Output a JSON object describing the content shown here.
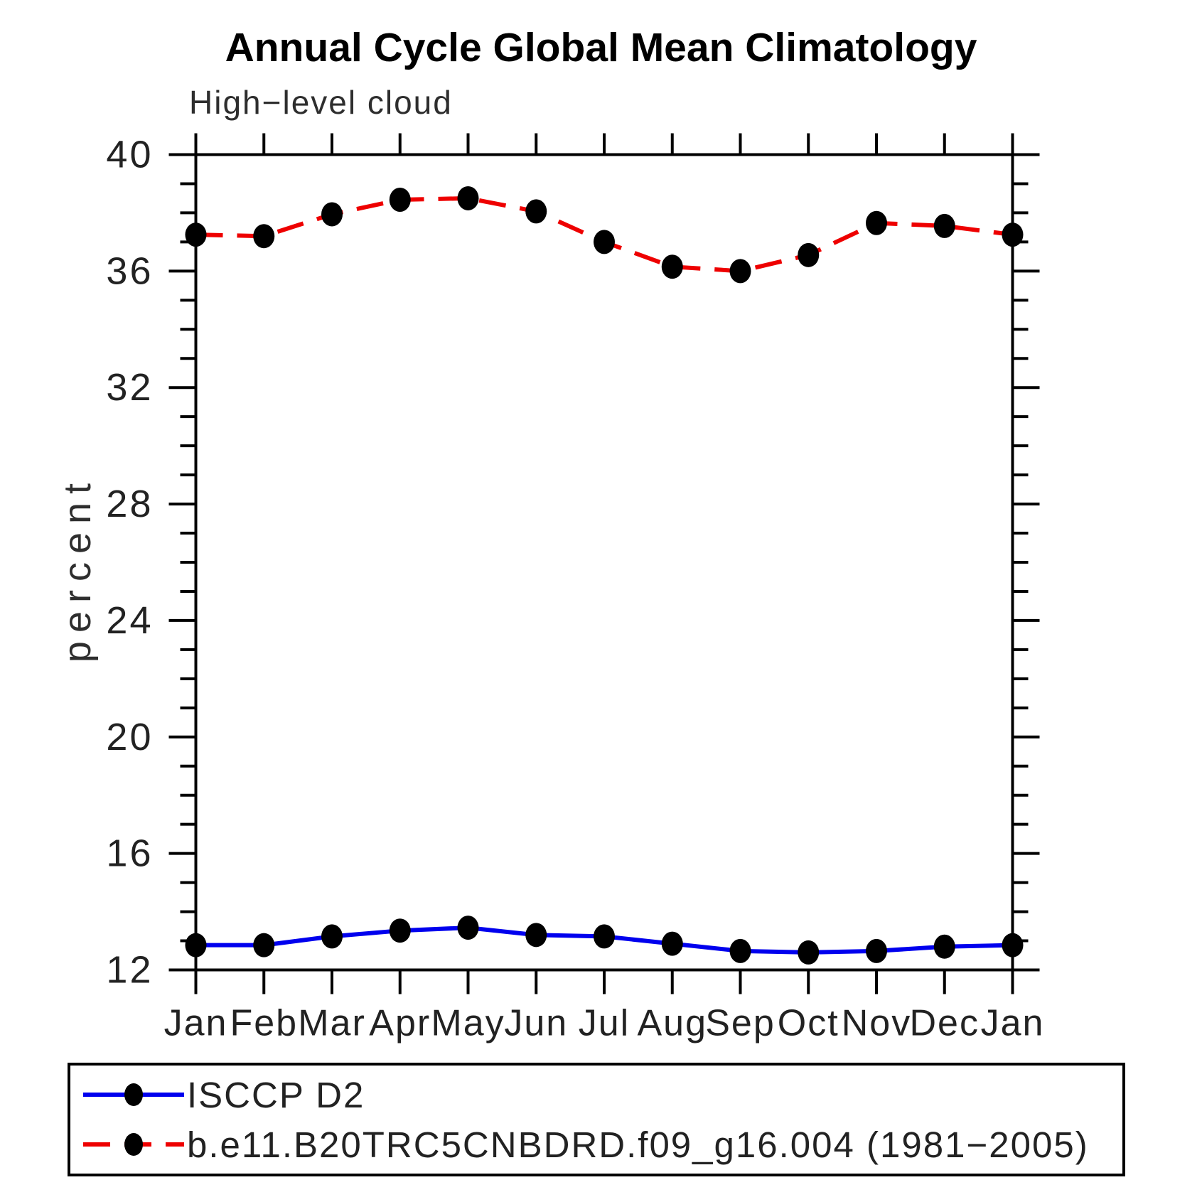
{
  "chart_data": {
    "type": "line",
    "title": "Annual Cycle Global Mean Climatology",
    "subtitle": "High−level cloud",
    "ylabel": "percent",
    "xlabel": "",
    "categories": [
      "Jan",
      "Feb",
      "Mar",
      "Apr",
      "May",
      "Jun",
      "Jul",
      "Aug",
      "Sep",
      "Oct",
      "Nov",
      "Dec",
      "Jan"
    ],
    "ylim": [
      12,
      40
    ],
    "yticks_major": [
      12,
      16,
      20,
      24,
      28,
      32,
      36,
      40
    ],
    "ytick_minor_step": 1,
    "grid": false,
    "legend_position": "bottom",
    "series": [
      {
        "name": "ISCCP D2",
        "color": "#0000ee",
        "style": "solid",
        "dash": null,
        "marker": "filled-circle",
        "marker_color": "#000000",
        "values": [
          12.85,
          12.85,
          13.15,
          13.35,
          13.45,
          13.2,
          13.15,
          12.9,
          12.65,
          12.6,
          12.65,
          12.8,
          12.85
        ]
      },
      {
        "name": "b.e11.B20TRC5CNBDRD.f09_g16.004 (1981−2005)",
        "color": "#ee0000",
        "style": "dashed",
        "dash": "38 20",
        "marker": "filled-circle",
        "marker_color": "#000000",
        "values": [
          37.25,
          37.2,
          37.95,
          38.45,
          38.5,
          38.05,
          37.0,
          36.15,
          36.0,
          36.55,
          37.65,
          37.55,
          37.25
        ]
      }
    ]
  }
}
